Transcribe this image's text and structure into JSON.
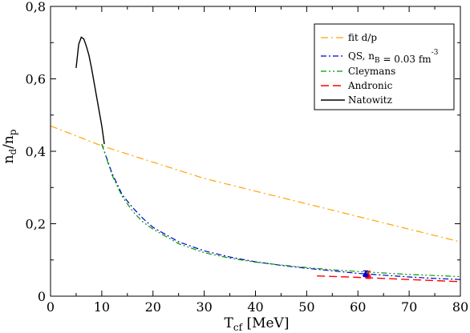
{
  "chart_data": {
    "type": "line",
    "xlim": [
      0,
      80
    ],
    "ylim": [
      0,
      0.8
    ],
    "grid": false,
    "legend_position": "top-right",
    "x_ticks": [
      0,
      10,
      20,
      30,
      40,
      50,
      60,
      70,
      80
    ],
    "x_tick_labels": [
      "0",
      "10",
      "20",
      "30",
      "40",
      "50",
      "60",
      "70",
      "80"
    ],
    "y_ticks": [
      0,
      0.2,
      0.4,
      0.6,
      0.8
    ],
    "y_tick_labels": [
      "0",
      "0,2",
      "0,4",
      "0,6",
      "0,8"
    ],
    "xlabel": {
      "main": "T",
      "sub": "cf",
      "rest": " [MeV]"
    },
    "ylabel": {
      "n1": "n",
      "d": "d",
      "slash": "/n",
      "p": "p"
    },
    "legend": [
      {
        "key": "fit",
        "parts": [
          {
            "t": "fit d/p"
          }
        ]
      },
      {
        "key": "qs",
        "parts": [
          {
            "t": "QS, n"
          },
          {
            "t": "B",
            "sub": true
          },
          {
            "t": " = 0.03 fm"
          },
          {
            "t": "-3",
            "sup": true
          }
        ]
      },
      {
        "key": "cleymans",
        "parts": [
          {
            "t": "Cleymans"
          }
        ]
      },
      {
        "key": "andronic",
        "parts": [
          {
            "t": "Andronic"
          }
        ]
      },
      {
        "key": "natowitz",
        "parts": [
          {
            "t": "Natowitz"
          }
        ]
      }
    ],
    "series": [
      {
        "key": "fit",
        "color": "#ffa500",
        "dash": "9,4,2,4",
        "width": 1.2,
        "points": [
          [
            0,
            0.47
          ],
          [
            10,
            0.415
          ],
          [
            20,
            0.37
          ],
          [
            30,
            0.325
          ],
          [
            40,
            0.29
          ],
          [
            50,
            0.255
          ],
          [
            60,
            0.22
          ],
          [
            70,
            0.185
          ],
          [
            80,
            0.15
          ]
        ]
      },
      {
        "key": "qs",
        "color": "#0000cc",
        "dash": "7,3,2,3",
        "width": 1.2,
        "points": [
          [
            10,
            0.42
          ],
          [
            12,
            0.34
          ],
          [
            14,
            0.28
          ],
          [
            16,
            0.245
          ],
          [
            18,
            0.215
          ],
          [
            20,
            0.19
          ],
          [
            25,
            0.15
          ],
          [
            30,
            0.125
          ],
          [
            35,
            0.108
          ],
          [
            40,
            0.095
          ],
          [
            45,
            0.085
          ],
          [
            50,
            0.077
          ],
          [
            55,
            0.07
          ],
          [
            60,
            0.063
          ],
          [
            65,
            0.058
          ],
          [
            70,
            0.053
          ],
          [
            75,
            0.049
          ],
          [
            80,
            0.046
          ]
        ]
      },
      {
        "key": "cleymans",
        "color": "#009900",
        "dash": "7,3,2,3,2,3",
        "width": 1.2,
        "points": [
          [
            10,
            0.42
          ],
          [
            12,
            0.335
          ],
          [
            14,
            0.275
          ],
          [
            16,
            0.235
          ],
          [
            18,
            0.205
          ],
          [
            20,
            0.185
          ],
          [
            25,
            0.145
          ],
          [
            30,
            0.12
          ],
          [
            35,
            0.105
          ],
          [
            40,
            0.094
          ],
          [
            45,
            0.086
          ],
          [
            50,
            0.079
          ],
          [
            55,
            0.073
          ],
          [
            60,
            0.068
          ],
          [
            65,
            0.064
          ],
          [
            70,
            0.06
          ],
          [
            75,
            0.057
          ],
          [
            80,
            0.054
          ]
        ]
      },
      {
        "key": "andronic",
        "color": "#ff0000",
        "dash": "10,5",
        "width": 1.4,
        "points": [
          [
            52,
            0.056
          ],
          [
            56,
            0.054
          ],
          [
            60,
            0.052
          ],
          [
            65,
            0.049
          ],
          [
            70,
            0.046
          ],
          [
            75,
            0.043
          ],
          [
            80,
            0.04
          ]
        ]
      },
      {
        "key": "natowitz",
        "color": "#000000",
        "dash": "",
        "width": 1.4,
        "points": [
          [
            5,
            0.63
          ],
          [
            5.5,
            0.695
          ],
          [
            6,
            0.715
          ],
          [
            6.5,
            0.71
          ],
          [
            7,
            0.69
          ],
          [
            7.5,
            0.665
          ],
          [
            8,
            0.63
          ],
          [
            8.5,
            0.59
          ],
          [
            9,
            0.55
          ],
          [
            9.5,
            0.51
          ],
          [
            10,
            0.47
          ],
          [
            10.5,
            0.42
          ]
        ]
      }
    ],
    "markers": [
      {
        "color": "#ff0000",
        "x": 62,
        "y": 0.059,
        "yerr": 0.01
      },
      {
        "color": "#0000cc",
        "x": 61.5,
        "y": 0.062,
        "yerr": 0.008
      }
    ]
  }
}
